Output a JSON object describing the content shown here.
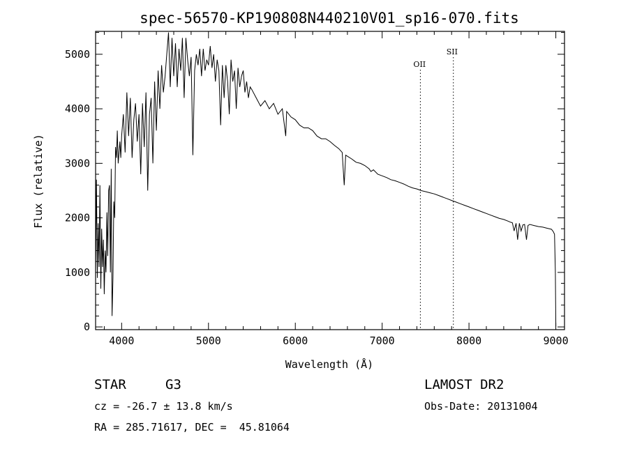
{
  "chart_data": {
    "type": "line",
    "title": "spec-56570-KP190808N440210V01_sp16-070.fits",
    "xlabel": "Wavelength (Å)",
    "ylabel": "Flux (relative)",
    "xlim": [
      3700,
      9100
    ],
    "ylim": [
      -50,
      5420
    ],
    "xticks": [
      4000,
      5000,
      6000,
      7000,
      8000,
      9000
    ],
    "yticks": [
      0,
      1000,
      2000,
      3000,
      4000,
      5000
    ],
    "grid": false,
    "series": [
      {
        "x": [
          3700,
          3710,
          3720,
          3730,
          3740,
          3750,
          3760,
          3770,
          3780,
          3790,
          3800,
          3810,
          3820,
          3830,
          3840,
          3850,
          3860,
          3870,
          3880,
          3890,
          3900,
          3910,
          3920,
          3930,
          3940,
          3950,
          3960,
          3970,
          3980,
          3990,
          4000,
          4020,
          4040,
          4060,
          4080,
          4100,
          4120,
          4140,
          4160,
          4180,
          4200,
          4220,
          4240,
          4260,
          4280,
          4300,
          4320,
          4340,
          4360,
          4380,
          4400,
          4420,
          4440,
          4460,
          4480,
          4500,
          4520,
          4540,
          4560,
          4580,
          4600,
          4620,
          4640,
          4660,
          4680,
          4700,
          4720,
          4740,
          4760,
          4780,
          4800,
          4820,
          4840,
          4860,
          4880,
          4900,
          4920,
          4940,
          4960,
          4980,
          5000,
          5020,
          5040,
          5060,
          5080,
          5100,
          5120,
          5140,
          5160,
          5180,
          5200,
          5220,
          5240,
          5260,
          5280,
          5300,
          5320,
          5340,
          5360,
          5380,
          5400,
          5420,
          5440,
          5460,
          5480,
          5500,
          5550,
          5600,
          5650,
          5700,
          5750,
          5800,
          5850,
          5890,
          5900,
          5950,
          6000,
          6050,
          6100,
          6150,
          6200,
          6250,
          6300,
          6350,
          6400,
          6450,
          6500,
          6540,
          6563,
          6580,
          6600,
          6650,
          6700,
          6750,
          6800,
          6850,
          6870,
          6900,
          6950,
          7000,
          7050,
          7100,
          7150,
          7200,
          7250,
          7300,
          7350,
          7400,
          7450,
          7500,
          7550,
          7600,
          7650,
          7700,
          7750,
          7800,
          7850,
          7900,
          7950,
          8000,
          8050,
          8100,
          8150,
          8200,
          8250,
          8300,
          8350,
          8400,
          8450,
          8480,
          8500,
          8520,
          8542,
          8560,
          8580,
          8600,
          8620,
          8640,
          8662,
          8680,
          8700,
          8750,
          8800,
          8850,
          8900,
          8950,
          8970,
          8985,
          8995,
          9000
        ],
        "values": [
          1000,
          2700,
          900,
          1900,
          1100,
          2600,
          700,
          1800,
          1100,
          1600,
          600,
          1400,
          1000,
          2100,
          1300,
          2500,
          2600,
          1000,
          2900,
          200,
          900,
          2300,
          2000,
          3300,
          3100,
          3600,
          3000,
          3200,
          3400,
          3100,
          3500,
          3900,
          3200,
          4300,
          3500,
          4200,
          3100,
          3800,
          4100,
          3400,
          3900,
          2800,
          4100,
          3300,
          4300,
          2500,
          3900,
          4200,
          3000,
          4500,
          3600,
          4700,
          4000,
          4800,
          4300,
          4600,
          5000,
          5400,
          4400,
          5300,
          4600,
          5200,
          4400,
          5100,
          4700,
          5300,
          4200,
          5300,
          4900,
          4600,
          4950,
          3150,
          4700,
          5000,
          4800,
          5100,
          4600,
          5100,
          4700,
          4900,
          4800,
          5150,
          4750,
          5000,
          4500,
          4900,
          4700,
          3700,
          4800,
          4200,
          4800,
          4500,
          3900,
          4900,
          4500,
          4700,
          4000,
          4750,
          4400,
          4600,
          4700,
          4300,
          4500,
          4200,
          4400,
          4350,
          4200,
          4050,
          4150,
          4000,
          4100,
          3900,
          4000,
          3500,
          3950,
          3850,
          3800,
          3700,
          3650,
          3650,
          3600,
          3500,
          3450,
          3450,
          3400,
          3330,
          3270,
          3200,
          2600,
          3150,
          3130,
          3080,
          3020,
          3000,
          2960,
          2900,
          2850,
          2880,
          2800,
          2770,
          2740,
          2700,
          2680,
          2650,
          2620,
          2580,
          2550,
          2530,
          2500,
          2480,
          2460,
          2440,
          2410,
          2380,
          2350,
          2320,
          2290,
          2260,
          2230,
          2200,
          2170,
          2140,
          2110,
          2080,
          2050,
          2020,
          1990,
          1970,
          1940,
          1920,
          1910,
          1760,
          1900,
          1600,
          1900,
          1760,
          1870,
          1880,
          1600,
          1860,
          1880,
          1860,
          1840,
          1830,
          1810,
          1790,
          1750,
          1700,
          1000,
          0
        ]
      }
    ],
    "annotations": [
      {
        "text": "OII",
        "x": 7440,
        "style": "dotted"
      },
      {
        "text": "SII",
        "x": 7820,
        "style": "dotted"
      }
    ]
  },
  "info": {
    "object_class": "STAR",
    "subclass": "G3",
    "survey": "LAMOST DR2",
    "redshift": "cz = -26.7 ± 13.8 km/s",
    "obs_date": "Obs-Date: 20131004",
    "coords": "RA = 285.71617, DEC =  45.81064"
  }
}
